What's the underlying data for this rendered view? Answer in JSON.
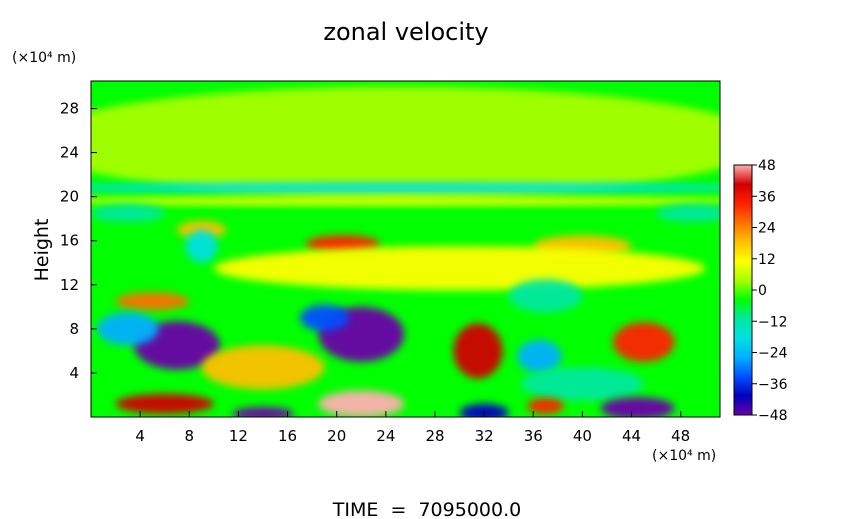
{
  "chart_data": {
    "type": "heatmap",
    "title": "zonal velocity",
    "ylabel": "Height",
    "y_unit_label": "(×10⁴ m)",
    "x_unit_label": "(×10⁴ m)",
    "footer": "TIME  =  7095000.0",
    "xlim": [
      0,
      51.2
    ],
    "ylim": [
      0,
      30.5
    ],
    "x_ticks": [
      4,
      8,
      12,
      16,
      20,
      24,
      28,
      32,
      36,
      40,
      44,
      48
    ],
    "x_tick_labels": [
      "4",
      "8",
      "12",
      "16",
      "20",
      "24",
      "28",
      "32",
      "36",
      "40",
      "44",
      "48"
    ],
    "y_ticks": [
      4,
      8,
      12,
      16,
      20,
      24,
      28
    ],
    "y_tick_labels": [
      "4",
      "8",
      "12",
      "16",
      "20",
      "24",
      "28"
    ],
    "colorbar": {
      "min": -48,
      "max": 48,
      "ticks": [
        48,
        36,
        24,
        12,
        0,
        -12,
        -24,
        -36,
        -48
      ],
      "tick_labels": [
        "48",
        "36",
        "24",
        "12",
        "0",
        "−12",
        "−24",
        "−36",
        "−48"
      ],
      "colors": [
        "#6a00a8",
        "#0000c0",
        "#0050ff",
        "#00b0ff",
        "#00e0e0",
        "#00e8a0",
        "#00ff00",
        "#a8ff00",
        "#ffff00",
        "#ffc000",
        "#ff7000",
        "#ff2000",
        "#d00000",
        "#ffb0b0"
      ]
    },
    "background_value": 2,
    "features": [
      {
        "x": 25,
        "y": 25,
        "sx": 30,
        "sy": 5,
        "v": 3
      },
      {
        "x": 25,
        "y": 20.8,
        "sx": 30,
        "sy": 0.5,
        "v": -16
      },
      {
        "x": 25,
        "y": 19.6,
        "sx": 30,
        "sy": 0.4,
        "v": 10
      },
      {
        "x": 3,
        "y": 18.5,
        "sx": 3,
        "sy": 0.8,
        "v": -14
      },
      {
        "x": 49,
        "y": 18.5,
        "sx": 3,
        "sy": 0.8,
        "v": -14
      },
      {
        "x": 9,
        "y": 17,
        "sx": 2,
        "sy": 0.8,
        "v": 20
      },
      {
        "x": 20.5,
        "y": 15.7,
        "sx": 3,
        "sy": 0.8,
        "v": 32
      },
      {
        "x": 40,
        "y": 15.5,
        "sx": 4,
        "sy": 1,
        "v": 16
      },
      {
        "x": 9,
        "y": 15.5,
        "sx": 1.3,
        "sy": 1.5,
        "v": -22
      },
      {
        "x": 30,
        "y": 13.5,
        "sx": 20,
        "sy": 2,
        "v": 8
      },
      {
        "x": 5,
        "y": 10.5,
        "sx": 3,
        "sy": 0.8,
        "v": 28
      },
      {
        "x": 37,
        "y": 11,
        "sx": 3,
        "sy": 1.5,
        "v": -12
      },
      {
        "x": 7,
        "y": 6.5,
        "sx": 3.5,
        "sy": 2.2,
        "v": -48
      },
      {
        "x": 3,
        "y": 8,
        "sx": 2.5,
        "sy": 1.5,
        "v": -25
      },
      {
        "x": 22,
        "y": 7.5,
        "sx": 3.5,
        "sy": 2.5,
        "v": -50
      },
      {
        "x": 19,
        "y": 9,
        "sx": 2,
        "sy": 1.2,
        "v": -30
      },
      {
        "x": 31.5,
        "y": 6,
        "sx": 2,
        "sy": 2.5,
        "v": 38
      },
      {
        "x": 45,
        "y": 6.8,
        "sx": 2.5,
        "sy": 1.8,
        "v": 36
      },
      {
        "x": 36.5,
        "y": 5.5,
        "sx": 1.8,
        "sy": 1.5,
        "v": -28
      },
      {
        "x": 14,
        "y": 4.5,
        "sx": 5,
        "sy": 2,
        "v": 20
      },
      {
        "x": 40,
        "y": 3,
        "sx": 5,
        "sy": 1.5,
        "v": -12
      },
      {
        "x": 6,
        "y": 1.2,
        "sx": 4,
        "sy": 0.9,
        "v": 44
      },
      {
        "x": 22,
        "y": 1.2,
        "sx": 3.5,
        "sy": 1.2,
        "v": 52
      },
      {
        "x": 14,
        "y": 0.3,
        "sx": 2.5,
        "sy": 0.6,
        "v": -45
      },
      {
        "x": 32,
        "y": 0.4,
        "sx": 2,
        "sy": 0.8,
        "v": -40
      },
      {
        "x": 44.5,
        "y": 0.8,
        "sx": 3,
        "sy": 1.0,
        "v": -48
      },
      {
        "x": 37,
        "y": 1,
        "sx": 1.5,
        "sy": 0.7,
        "v": 30
      }
    ]
  }
}
